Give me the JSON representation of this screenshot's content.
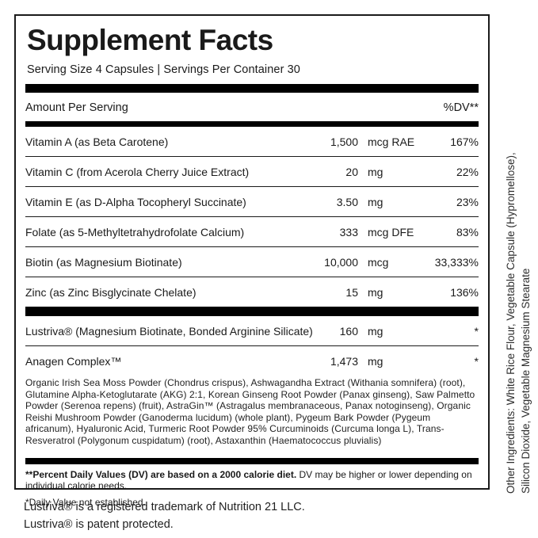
{
  "header": {
    "title": "Supplement Facts",
    "serving_line": "Serving Size 4 Capsules | Servings Per Container 30"
  },
  "table": {
    "amount_header": "Amount Per Serving",
    "dv_header": "%DV**",
    "rows": [
      {
        "name": "Vitamin A (as Beta Carotene)",
        "value": "1,500",
        "unit": "mcg RAE",
        "dv": "167%"
      },
      {
        "name": "Vitamin C (from Acerola Cherry Juice Extract)",
        "value": "20",
        "unit": "mg",
        "dv": "22%"
      },
      {
        "name": "Vitamin E (as D-Alpha Tocopheryl Succinate)",
        "value": "3.50",
        "unit": "mg",
        "dv": "23%"
      },
      {
        "name": "Folate (as 5-Methyltetrahydrofolate Calcium)",
        "value": "333",
        "unit": "mcg DFE",
        "dv": "83%"
      },
      {
        "name": "Biotin (as Magnesium Biotinate)",
        "value": "10,000",
        "unit": "mcg",
        "dv": "33,333%"
      },
      {
        "name": "Zinc (as Zinc Bisglycinate Chelate)",
        "value": "15",
        "unit": "mg",
        "dv": "136%"
      },
      {
        "name": "Lustriva® (Magnesium Biotinate, Bonded Arginine Silicate)",
        "value": "160",
        "unit": "mg",
        "dv": "*"
      },
      {
        "name": "Anagen Complex™",
        "value": "1,473",
        "unit": "mg",
        "dv": "*"
      }
    ],
    "anagen_ingredients": "Organic Irish Sea Moss Powder (Chondrus crispus), Ashwagandha Extract (Withania somnifera) (root), Glutamine Alpha-Ketoglutarate (AKG) 2:1, Korean Ginseng Root Powder (Panax ginseng), Saw Palmetto Powder (Serenoa repens) (fruit), AstraGin™ (Astragalus membranaceous, Panax notoginseng), Organic Reishi Mushroom Powder (Ganoderma lucidum) (whole plant), Pygeum Bark Powder (Pygeum africanum), Hyaluronic Acid, Turmeric Root Powder 95% Curcuminoids (Curcuma longa L), Trans-Resveratrol (Polygonum cuspidatum) (root), Astaxanthin (Haematococcus pluvialis)"
  },
  "footnotes": {
    "dv_bold": "**Percent Daily Values (DV) are based on a 2000 calorie diet.",
    "dv_rest": " DV may be higher or lower depending on individual calorie needs.",
    "not_established": "*Daily Value not established."
  },
  "other_ingredients": {
    "line1": "Other Ingredients: White Rice Flour, Vegetable Capsule (Hypromellose),",
    "line2": "Silicon Dioxide, Vegetable Magnesium Stearate"
  },
  "trademarks": {
    "line1": "Lustriva® is a registered trademark of Nutrition 21 LLC.",
    "line2": "Lustriva® is patent protected."
  },
  "colors": {
    "text": "#1a1a1a",
    "bar": "#000000",
    "background": "#ffffff"
  }
}
